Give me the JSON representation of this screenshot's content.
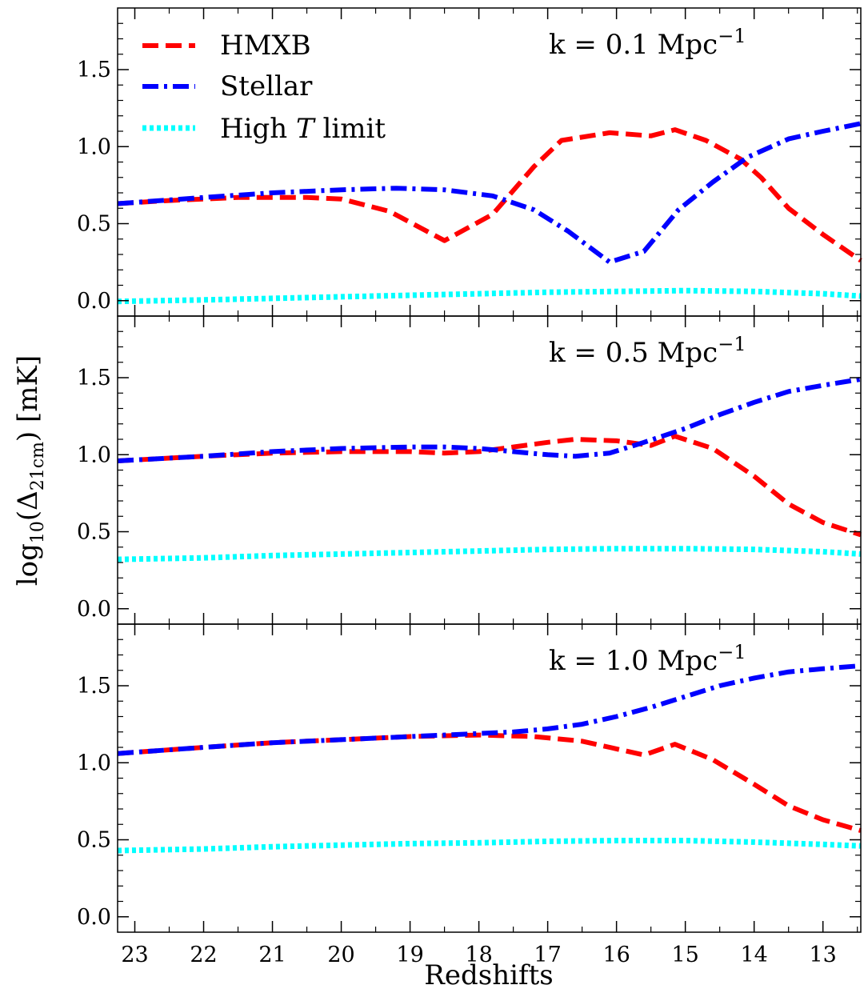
{
  "chart_data": {
    "type": "line",
    "xlabel": "Redshifts",
    "ylabel_main": "log",
    "ylabel_sub": "10",
    "ylabel_open": "(Δ",
    "ylabel_sub2": "21cm",
    "ylabel_rest": ") [mK]",
    "xlim": [
      23.25,
      12.45
    ],
    "ylim": [
      -0.1,
      1.9
    ],
    "x_ticks": [
      23,
      22,
      21,
      20,
      19,
      18,
      17,
      16,
      15,
      14,
      13
    ],
    "x_tick_labels": [
      "23",
      "22",
      "21",
      "20",
      "19",
      "18",
      "17",
      "16",
      "15",
      "14",
      "13"
    ],
    "y_ticks": [
      0.0,
      0.5,
      1.0,
      1.5
    ],
    "y_tick_labels": [
      "0.0",
      "0.5",
      "1.0",
      "1.5"
    ],
    "legend": {
      "location": "upper-left",
      "entries": [
        {
          "label": "HMXB",
          "italic_part": "",
          "label_tail": ""
        },
        {
          "label": "Stellar",
          "italic_part": "",
          "label_tail": ""
        },
        {
          "label": "High ",
          "italic_part": "T",
          "label_tail": " limit"
        }
      ]
    },
    "series_styles": [
      {
        "name": "HMXB",
        "color": "#ff0000",
        "dash": "20,9"
      },
      {
        "name": "Stellar",
        "color": "#0000ff",
        "dash": "20,7,4,7"
      },
      {
        "name": "High T limit",
        "color": "#00ffff",
        "dash": "5,4"
      }
    ],
    "panels": [
      {
        "label_main": "k = 0.1 Mpc",
        "label_sup": "−1",
        "series": [
          {
            "name": "HMXB",
            "x": [
              23.25,
              22.5,
              21.5,
              20.5,
              20.0,
              19.3,
              18.5,
              17.8,
              17.2,
              16.8,
              16.1,
              15.5,
              15.15,
              14.7,
              14.2,
              13.9,
              13.5,
              13.0,
              12.45
            ],
            "y": [
              0.63,
              0.65,
              0.67,
              0.67,
              0.66,
              0.58,
              0.39,
              0.56,
              0.87,
              1.04,
              1.09,
              1.07,
              1.11,
              1.04,
              0.92,
              0.8,
              0.6,
              0.43,
              0.26
            ]
          },
          {
            "name": "Stellar",
            "x": [
              23.25,
              22.0,
              21.0,
              20.0,
              19.2,
              18.5,
              17.8,
              17.2,
              16.7,
              16.1,
              15.6,
              15.1,
              14.6,
              14.1,
              13.5,
              13.0,
              12.45
            ],
            "y": [
              0.63,
              0.67,
              0.7,
              0.72,
              0.73,
              0.72,
              0.68,
              0.59,
              0.45,
              0.25,
              0.32,
              0.59,
              0.77,
              0.93,
              1.05,
              1.1,
              1.15
            ]
          },
          {
            "name": "High T limit",
            "x": [
              23.25,
              22.0,
              21.0,
              20.0,
              19.0,
              18.0,
              17.0,
              16.0,
              15.0,
              14.0,
              13.0,
              12.45
            ],
            "y": [
              -0.005,
              0.005,
              0.015,
              0.025,
              0.035,
              0.045,
              0.055,
              0.06,
              0.065,
              0.06,
              0.045,
              0.03
            ]
          }
        ]
      },
      {
        "label_main": "k = 0.5 Mpc",
        "label_sup": "−1",
        "series": [
          {
            "name": "HMXB",
            "x": [
              23.25,
              22.0,
              21.0,
              20.0,
              19.0,
              18.5,
              18.0,
              17.5,
              17.0,
              16.6,
              16.0,
              15.5,
              15.15,
              14.6,
              14.0,
              13.5,
              13.0,
              12.45
            ],
            "y": [
              0.96,
              0.99,
              1.01,
              1.02,
              1.02,
              1.01,
              1.02,
              1.05,
              1.08,
              1.1,
              1.09,
              1.06,
              1.12,
              1.04,
              0.86,
              0.68,
              0.56,
              0.48
            ]
          },
          {
            "name": "Stellar",
            "x": [
              23.25,
              22.0,
              21.0,
              20.0,
              19.0,
              18.5,
              18.0,
              17.5,
              17.0,
              16.6,
              16.1,
              15.6,
              15.0,
              14.5,
              14.0,
              13.5,
              13.0,
              12.45
            ],
            "y": [
              0.96,
              0.99,
              1.02,
              1.04,
              1.05,
              1.05,
              1.04,
              1.02,
              1.0,
              0.99,
              1.01,
              1.08,
              1.17,
              1.26,
              1.34,
              1.41,
              1.45,
              1.49
            ]
          },
          {
            "name": "High T limit",
            "x": [
              23.25,
              22.0,
              21.0,
              20.0,
              19.0,
              18.0,
              17.0,
              16.0,
              15.0,
              14.0,
              13.0,
              12.45
            ],
            "y": [
              0.32,
              0.33,
              0.345,
              0.355,
              0.365,
              0.375,
              0.385,
              0.39,
              0.39,
              0.385,
              0.37,
              0.355
            ]
          }
        ]
      },
      {
        "label_main": "k = 1.0 Mpc",
        "label_sup": "−1",
        "series": [
          {
            "name": "HMXB",
            "x": [
              23.25,
              22.0,
              21.0,
              20.0,
              19.0,
              18.0,
              17.2,
              16.5,
              16.0,
              15.6,
              15.15,
              14.6,
              14.0,
              13.5,
              13.0,
              12.45
            ],
            "y": [
              1.06,
              1.1,
              1.13,
              1.15,
              1.17,
              1.18,
              1.17,
              1.14,
              1.09,
              1.05,
              1.12,
              1.02,
              0.86,
              0.72,
              0.63,
              0.56
            ]
          },
          {
            "name": "Stellar",
            "x": [
              23.25,
              22.0,
              21.0,
              20.0,
              19.0,
              18.0,
              17.5,
              17.0,
              16.5,
              16.0,
              15.5,
              15.0,
              14.5,
              14.0,
              13.5,
              13.0,
              12.45
            ],
            "y": [
              1.06,
              1.1,
              1.13,
              1.15,
              1.17,
              1.19,
              1.2,
              1.22,
              1.25,
              1.3,
              1.36,
              1.43,
              1.5,
              1.55,
              1.59,
              1.61,
              1.63
            ]
          },
          {
            "name": "High T limit",
            "x": [
              23.25,
              22.0,
              21.0,
              20.0,
              19.0,
              18.0,
              17.0,
              16.0,
              15.0,
              14.0,
              13.0,
              12.45
            ],
            "y": [
              0.43,
              0.44,
              0.455,
              0.465,
              0.475,
              0.48,
              0.49,
              0.495,
              0.495,
              0.485,
              0.47,
              0.46
            ]
          }
        ]
      }
    ]
  }
}
